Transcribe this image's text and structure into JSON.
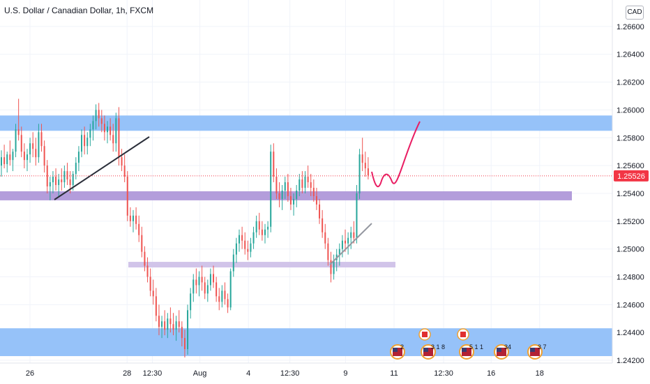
{
  "header": {
    "title": "U.S. Dollar / Canadian Dollar, 1h, FXCM",
    "currency": "CAD"
  },
  "colors": {
    "up": "#26a69a",
    "down": "#ef5350",
    "zone_blue": "#90bff9",
    "zone_purple": "#b39ddb",
    "zone_lavender": "#d1c4e9",
    "projection": "#e91e63",
    "trendline_dark": "#2a2e39",
    "trendline_light": "#9598a1",
    "last_price": "#f23645"
  },
  "chart_data": {
    "type": "candlestick",
    "title": "U.S. Dollar / Canadian Dollar, 1h, FXCM",
    "ylim": [
      1.2418,
      1.2672
    ],
    "y_ticks": [
      "1.26600",
      "1.26400",
      "1.26200",
      "1.26000",
      "1.25800",
      "1.25600",
      "1.25400",
      "1.25200",
      "1.25000",
      "1.24800",
      "1.24600",
      "1.24400",
      "1.24200"
    ],
    "x_ticks": [
      {
        "label": "26",
        "t": 0
      },
      {
        "label": "28",
        "t": 48
      },
      {
        "label": "12:30",
        "t": 60.5
      },
      {
        "label": "Aug",
        "t": 84
      },
      {
        "label": "4",
        "t": 108
      },
      {
        "label": "12:30",
        "t": 128.5
      },
      {
        "label": "9",
        "t": 156
      },
      {
        "label": "11",
        "t": 180
      },
      {
        "label": "12:30",
        "t": 204.5
      },
      {
        "label": "16",
        "t": 228
      },
      {
        "label": "18",
        "t": 252
      }
    ],
    "last_price": "1.25526",
    "zones": [
      {
        "from": 1.2585,
        "to": 1.2596
      },
      {
        "from": 1.2535,
        "to": 1.25415
      },
      {
        "from": 1.2488,
        "to": 1.24895
      },
      {
        "from": 1.2423,
        "to": 1.2443
      }
    ],
    "events": [
      "2",
      "3 1 8",
      "5 1 1",
      "34",
      "3 7"
    ],
    "candles": [
      [
        1.256,
        1.2571,
        1.2552,
        1.2566
      ],
      [
        1.2566,
        1.2575,
        1.2558,
        1.2561
      ],
      [
        1.2561,
        1.257,
        1.2555,
        1.2568
      ],
      [
        1.2568,
        1.2578,
        1.256,
        1.2564
      ],
      [
        1.2564,
        1.2572,
        1.2556,
        1.257
      ],
      [
        1.257,
        1.259,
        1.2566,
        1.2586
      ],
      [
        1.2586,
        1.2608,
        1.2578,
        1.2582
      ],
      [
        1.2582,
        1.2588,
        1.2566,
        1.257
      ],
      [
        1.257,
        1.2576,
        1.2558,
        1.2564
      ],
      [
        1.2564,
        1.2572,
        1.2556,
        1.2568
      ],
      [
        1.2568,
        1.258,
        1.2562,
        1.2576
      ],
      [
        1.2576,
        1.2584,
        1.2566,
        1.2572
      ],
      [
        1.2572,
        1.258,
        1.256,
        1.2566
      ],
      [
        1.2566,
        1.259,
        1.2562,
        1.2584
      ],
      [
        1.2584,
        1.259,
        1.257,
        1.2574
      ],
      [
        1.2574,
        1.2578,
        1.2555,
        1.256
      ],
      [
        1.256,
        1.2564,
        1.254,
        1.2545
      ],
      [
        1.2545,
        1.2552,
        1.2535,
        1.2548
      ],
      [
        1.2548,
        1.2556,
        1.254,
        1.2552
      ],
      [
        1.2552,
        1.2558,
        1.2542,
        1.2546
      ],
      [
        1.2546,
        1.2554,
        1.2538,
        1.255
      ],
      [
        1.255,
        1.2558,
        1.2542,
        1.2548
      ],
      [
        1.2548,
        1.256,
        1.2544,
        1.2556
      ],
      [
        1.2556,
        1.2562,
        1.2546,
        1.255
      ],
      [
        1.255,
        1.2556,
        1.254,
        1.2546
      ],
      [
        1.2546,
        1.2556,
        1.2542,
        1.2554
      ],
      [
        1.2554,
        1.2566,
        1.255,
        1.2562
      ],
      [
        1.2562,
        1.2574,
        1.2556,
        1.257
      ],
      [
        1.257,
        1.2586,
        1.2566,
        1.2582
      ],
      [
        1.2582,
        1.2588,
        1.2568,
        1.2574
      ],
      [
        1.2574,
        1.2584,
        1.2568,
        1.258
      ],
      [
        1.258,
        1.259,
        1.2574,
        1.2586
      ],
      [
        1.2586,
        1.2596,
        1.2578,
        1.2592
      ],
      [
        1.2592,
        1.2604,
        1.2586,
        1.26
      ],
      [
        1.26,
        1.2605,
        1.2588,
        1.2594
      ],
      [
        1.2594,
        1.26,
        1.2584,
        1.259
      ],
      [
        1.259,
        1.2596,
        1.2578,
        1.2584
      ],
      [
        1.2584,
        1.2592,
        1.2576,
        1.2588
      ],
      [
        1.2588,
        1.2594,
        1.2578,
        1.2582
      ],
      [
        1.2582,
        1.259,
        1.257,
        1.2576
      ],
      [
        1.2576,
        1.2598,
        1.257,
        1.2594
      ],
      [
        1.2594,
        1.2602,
        1.256,
        1.2566
      ],
      [
        1.2566,
        1.2572,
        1.2556,
        1.256
      ],
      [
        1.256,
        1.2568,
        1.2548,
        1.2552
      ],
      [
        1.2552,
        1.2556,
        1.252,
        1.2524
      ],
      [
        1.2524,
        1.253,
        1.2516,
        1.252
      ],
      [
        1.252,
        1.2528,
        1.2512,
        1.2524
      ],
      [
        1.2524,
        1.253,
        1.2514,
        1.2518
      ],
      [
        1.2518,
        1.2524,
        1.2505,
        1.251
      ],
      [
        1.251,
        1.2516,
        1.2494,
        1.2498
      ],
      [
        1.2498,
        1.2502,
        1.2484,
        1.2488
      ],
      [
        1.2488,
        1.2494,
        1.2476,
        1.248
      ],
      [
        1.248,
        1.2486,
        1.2466,
        1.247
      ],
      [
        1.247,
        1.2478,
        1.246,
        1.2466
      ],
      [
        1.2466,
        1.2472,
        1.2448,
        1.2452
      ],
      [
        1.2452,
        1.246,
        1.2438,
        1.2444
      ],
      [
        1.2444,
        1.2452,
        1.2436,
        1.2448
      ],
      [
        1.2448,
        1.2456,
        1.2438,
        1.2442
      ],
      [
        1.2442,
        1.2454,
        1.2436,
        1.245
      ],
      [
        1.245,
        1.2458,
        1.244,
        1.2446
      ],
      [
        1.2446,
        1.2454,
        1.2438,
        1.2442
      ],
      [
        1.2442,
        1.2452,
        1.2434,
        1.2448
      ],
      [
        1.2448,
        1.2456,
        1.244,
        1.2444
      ],
      [
        1.2444,
        1.2448,
        1.243,
        1.2436
      ],
      [
        1.2436,
        1.2442,
        1.2422,
        1.2428
      ],
      [
        1.2428,
        1.246,
        1.2424,
        1.2456
      ],
      [
        1.2456,
        1.2472,
        1.245,
        1.2468
      ],
      [
        1.2468,
        1.2482,
        1.2462,
        1.2478
      ],
      [
        1.2478,
        1.2486,
        1.2468,
        1.2474
      ],
      [
        1.2474,
        1.2484,
        1.2466,
        1.248
      ],
      [
        1.248,
        1.2488,
        1.247,
        1.2476
      ],
      [
        1.2476,
        1.248,
        1.2464,
        1.2468
      ],
      [
        1.2468,
        1.2478,
        1.2462,
        1.2474
      ],
      [
        1.2474,
        1.2486,
        1.247,
        1.2482
      ],
      [
        1.2482,
        1.2488,
        1.2472,
        1.2476
      ],
      [
        1.2476,
        1.248,
        1.2462,
        1.2466
      ],
      [
        1.2466,
        1.2472,
        1.2456,
        1.2462
      ],
      [
        1.2462,
        1.2474,
        1.2458,
        1.247
      ],
      [
        1.247,
        1.2476,
        1.246,
        1.2464
      ],
      [
        1.2464,
        1.2468,
        1.2454,
        1.2458
      ],
      [
        1.2458,
        1.2486,
        1.2456,
        1.2484
      ],
      [
        1.2484,
        1.25,
        1.248,
        1.2496
      ],
      [
        1.2496,
        1.2508,
        1.249,
        1.2504
      ],
      [
        1.2504,
        1.2514,
        1.2498,
        1.251
      ],
      [
        1.251,
        1.2516,
        1.25,
        1.2506
      ],
      [
        1.2506,
        1.2512,
        1.2496,
        1.25
      ],
      [
        1.25,
        1.2506,
        1.2492,
        1.2498
      ],
      [
        1.2498,
        1.2508,
        1.2494,
        1.2504
      ],
      [
        1.2504,
        1.2516,
        1.25,
        1.2512
      ],
      [
        1.2512,
        1.2524,
        1.2508,
        1.252
      ],
      [
        1.252,
        1.2526,
        1.251,
        1.2514
      ],
      [
        1.2514,
        1.252,
        1.2506,
        1.251
      ],
      [
        1.251,
        1.2518,
        1.2504,
        1.2514
      ],
      [
        1.2514,
        1.252,
        1.2508,
        1.2516
      ],
      [
        1.2516,
        1.2575,
        1.2512,
        1.257
      ],
      [
        1.257,
        1.2576,
        1.2548,
        1.2552
      ],
      [
        1.2552,
        1.2558,
        1.2536,
        1.254
      ],
      [
        1.254,
        1.2548,
        1.253,
        1.2536
      ],
      [
        1.2536,
        1.2546,
        1.2528,
        1.2542
      ],
      [
        1.2542,
        1.2552,
        1.2536,
        1.2548
      ],
      [
        1.2548,
        1.2554,
        1.2534,
        1.2538
      ],
      [
        1.2538,
        1.2544,
        1.2528,
        1.2532
      ],
      [
        1.2532,
        1.254,
        1.2524,
        1.2536
      ],
      [
        1.2536,
        1.2546,
        1.253,
        1.2542
      ],
      [
        1.2542,
        1.2554,
        1.2538,
        1.255
      ],
      [
        1.255,
        1.2556,
        1.254,
        1.2544
      ],
      [
        1.2544,
        1.2556,
        1.254,
        1.2552
      ],
      [
        1.2552,
        1.256,
        1.2544,
        1.2548
      ],
      [
        1.2548,
        1.2554,
        1.2538,
        1.2544
      ],
      [
        1.2544,
        1.255,
        1.2534,
        1.2538
      ],
      [
        1.2538,
        1.2544,
        1.2528,
        1.2532
      ],
      [
        1.2532,
        1.2536,
        1.2518,
        1.2522
      ],
      [
        1.2522,
        1.2528,
        1.2508,
        1.2512
      ],
      [
        1.2512,
        1.2518,
        1.25,
        1.2504
      ],
      [
        1.2504,
        1.2508,
        1.2488,
        1.2492
      ],
      [
        1.2492,
        1.2498,
        1.2476,
        1.2482
      ],
      [
        1.2482,
        1.2496,
        1.2478,
        1.2492
      ],
      [
        1.2492,
        1.25,
        1.2484,
        1.2496
      ],
      [
        1.2496,
        1.2504,
        1.2488,
        1.25
      ],
      [
        1.25,
        1.251,
        1.2494,
        1.2506
      ],
      [
        1.2506,
        1.2514,
        1.2498,
        1.2504
      ],
      [
        1.2504,
        1.2512,
        1.2496,
        1.2508
      ],
      [
        1.2508,
        1.2516,
        1.25,
        1.2512
      ],
      [
        1.2512,
        1.252,
        1.2504,
        1.2508
      ],
      [
        1.2508,
        1.2546,
        1.2504,
        1.254
      ],
      [
        1.254,
        1.2572,
        1.2536,
        1.2568
      ],
      [
        1.2568,
        1.258,
        1.2556,
        1.2562
      ],
      [
        1.2562,
        1.257,
        1.2552,
        1.2558
      ],
      [
        1.2558,
        1.2566,
        1.255,
        1.2553
      ]
    ]
  }
}
